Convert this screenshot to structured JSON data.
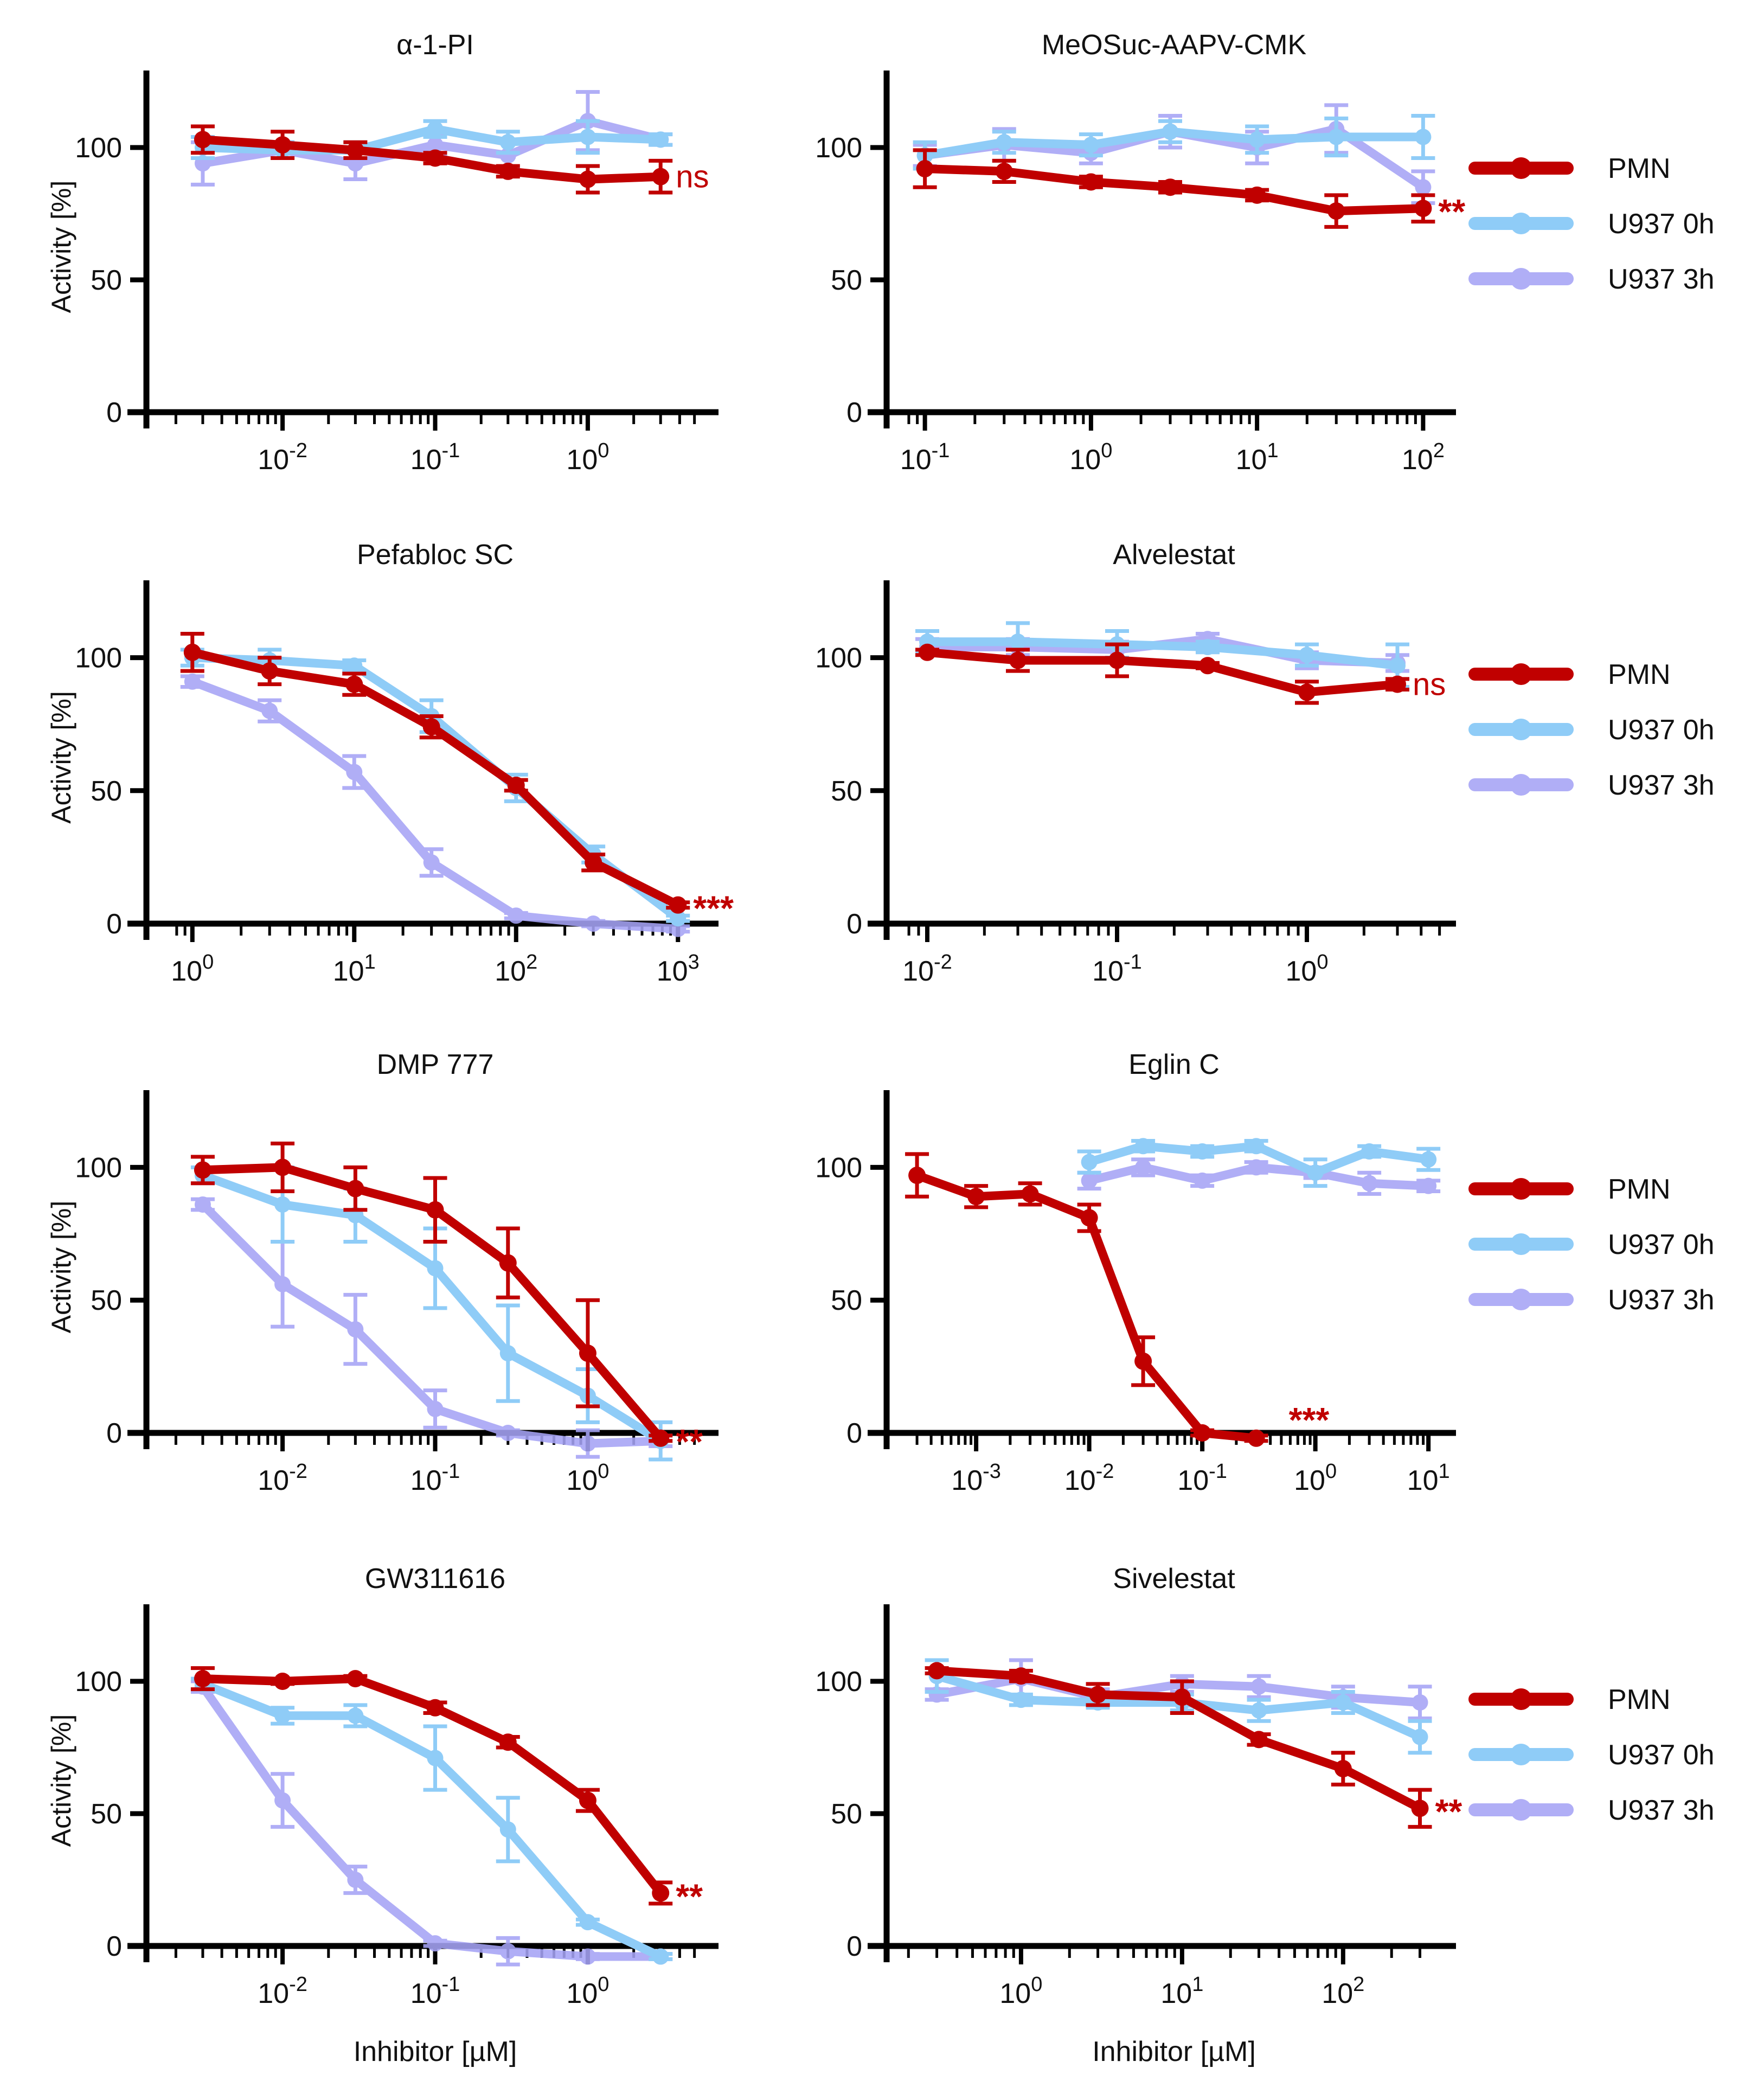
{
  "figure": {
    "x_axis_label": "Inhibitor [µM]",
    "colors": {
      "PMN": "#c00000",
      "U937 0h": "#8fccf7",
      "U937 3h": "#a6a3f5"
    }
  },
  "legend": {
    "series": [
      "PMN",
      "U937 0h",
      "U937 3h"
    ]
  },
  "chart_data": [
    {
      "type": "line",
      "title": "α-1-PI",
      "ylabel": "Activity [%]",
      "xlabel": "",
      "xscale": "log",
      "xlim_log": [
        -2.75,
        0.75
      ],
      "x_tick_exponents": [
        -2,
        -1,
        0
      ],
      "ylim": [
        0,
        125
      ],
      "y_ticks": [
        0,
        50,
        100
      ],
      "significance": "ns",
      "series": [
        {
          "name": "PMN",
          "x": [
            0.003,
            0.01,
            0.03,
            0.1,
            0.3,
            1,
            3
          ],
          "y": [
            103,
            101,
            99,
            96,
            91,
            88,
            89
          ],
          "err": [
            5,
            5,
            3,
            2,
            2,
            5,
            6
          ]
        },
        {
          "name": "U937 0h",
          "x": [
            0.003,
            0.01,
            0.03,
            0.1,
            0.3,
            1,
            3
          ],
          "y": [
            100,
            99,
            99,
            107,
            102,
            104,
            103
          ],
          "err": [
            4,
            3,
            3,
            3,
            4,
            6,
            2
          ]
        },
        {
          "name": "U937 3h",
          "x": [
            0.003,
            0.01,
            0.03,
            0.1,
            0.3,
            1,
            3
          ],
          "y": [
            94,
            99,
            94,
            101,
            97,
            110,
            103
          ],
          "err": [
            8,
            3,
            6,
            4,
            5,
            11,
            2
          ]
        }
      ]
    },
    {
      "type": "line",
      "title": "MeOSuc-AAPV-CMK",
      "ylabel": "",
      "xlabel": "",
      "xscale": "log",
      "xlim_log": [
        -1.1,
        2.1
      ],
      "x_tick_exponents": [
        -1,
        0,
        1,
        2
      ],
      "ylim": [
        0,
        125
      ],
      "y_ticks": [
        0,
        50,
        100
      ],
      "significance": "**",
      "legend": true,
      "series": [
        {
          "name": "PMN",
          "x": [
            0.1,
            0.3,
            1,
            3,
            10,
            30,
            100
          ],
          "y": [
            92,
            91,
            87,
            85,
            82,
            76,
            77
          ],
          "err": [
            7,
            4,
            2,
            2,
            2,
            6,
            5
          ]
        },
        {
          "name": "U937 0h",
          "x": [
            0.1,
            0.3,
            1,
            3,
            10,
            30,
            100
          ],
          "y": [
            97,
            102,
            101,
            106,
            103,
            104,
            104
          ],
          "err": [
            5,
            4,
            4,
            4,
            5,
            7,
            8
          ]
        },
        {
          "name": "U937 3h",
          "x": [
            0.1,
            0.3,
            1,
            3,
            10,
            30,
            100
          ],
          "y": [
            97,
            101,
            98,
            106,
            100,
            107,
            85
          ],
          "err": [
            4,
            6,
            4,
            6,
            6,
            9,
            6
          ]
        }
      ]
    },
    {
      "type": "line",
      "title": "Pefabloc SC",
      "ylabel": "Activity [%]",
      "xlabel": "",
      "xscale": "log",
      "xlim_log": [
        -0.15,
        3.15
      ],
      "x_tick_exponents": [
        0,
        1,
        2,
        3
      ],
      "ylim": [
        0,
        125
      ],
      "y_ticks": [
        0,
        50,
        100
      ],
      "significance": "***",
      "series": [
        {
          "name": "PMN",
          "x": [
            1,
            3,
            10,
            30,
            100,
            300,
            1000
          ],
          "y": [
            102,
            95,
            90,
            74,
            52,
            23,
            7
          ],
          "err": [
            7,
            5,
            4,
            4,
            2,
            3,
            1
          ]
        },
        {
          "name": "U937 0h",
          "x": [
            1,
            3,
            10,
            30,
            100,
            300,
            1000
          ],
          "y": [
            100,
            99,
            97,
            78,
            51,
            26,
            2
          ],
          "err": [
            3,
            4,
            2,
            6,
            5,
            3,
            1
          ]
        },
        {
          "name": "U937 3h",
          "x": [
            1,
            3,
            10,
            30,
            100,
            300,
            1000
          ],
          "y": [
            91,
            80,
            57,
            23,
            3,
            0,
            -2
          ],
          "err": [
            2,
            4,
            6,
            5,
            1,
            1,
            1
          ]
        }
      ]
    },
    {
      "type": "line",
      "title": "Alvelestat",
      "ylabel": "",
      "xlabel": "",
      "xscale": "log",
      "xlim_log": [
        -2.1,
        0.7
      ],
      "x_tick_exponents": [
        -2,
        -1,
        0
      ],
      "ylim": [
        0,
        125
      ],
      "y_ticks": [
        0,
        50,
        100
      ],
      "significance": "ns",
      "legend": true,
      "series": [
        {
          "name": "PMN",
          "x": [
            0.01,
            0.03,
            0.1,
            0.3,
            1,
            3
          ],
          "y": [
            102,
            99,
            99,
            97,
            87,
            90
          ],
          "err": [
            1,
            4,
            6,
            1,
            4,
            2
          ]
        },
        {
          "name": "U937 0h",
          "x": [
            0.01,
            0.03,
            0.1,
            0.3,
            1,
            3
          ],
          "y": [
            106,
            106,
            105,
            104,
            101,
            97
          ],
          "err": [
            4,
            7,
            5,
            2,
            4,
            8
          ]
        },
        {
          "name": "U937 3h",
          "x": [
            0.01,
            0.03,
            0.1,
            0.3,
            1,
            3
          ],
          "y": [
            104,
            104,
            103,
            107,
            99,
            98
          ],
          "err": [
            3,
            3,
            3,
            2,
            3,
            3
          ]
        }
      ]
    },
    {
      "type": "line",
      "title": "DMP 777",
      "ylabel": "Activity [%]",
      "xlabel": "",
      "xscale": "log",
      "xlim_log": [
        -2.75,
        0.75
      ],
      "x_tick_exponents": [
        -2,
        -1,
        0
      ],
      "ylim": [
        0,
        125
      ],
      "y_ticks": [
        0,
        50,
        100
      ],
      "significance": "**",
      "series": [
        {
          "name": "PMN",
          "x": [
            0.003,
            0.01,
            0.03,
            0.1,
            0.3,
            1,
            3
          ],
          "y": [
            99,
            100,
            92,
            84,
            64,
            30,
            -2
          ],
          "err": [
            5,
            9,
            8,
            12,
            13,
            20,
            1
          ]
        },
        {
          "name": "U937 0h",
          "x": [
            0.003,
            0.01,
            0.03,
            0.1,
            0.3,
            1,
            3
          ],
          "y": [
            97,
            86,
            82,
            62,
            30,
            14,
            -3
          ],
          "err": [
            3,
            14,
            10,
            15,
            18,
            10,
            7
          ]
        },
        {
          "name": "U937 3h",
          "x": [
            0.003,
            0.01,
            0.03,
            0.1,
            0.3,
            1,
            3
          ],
          "y": [
            86,
            56,
            39,
            9,
            0,
            -4,
            -3
          ],
          "err": [
            2,
            16,
            13,
            7,
            1,
            5,
            2
          ]
        }
      ]
    },
    {
      "type": "line",
      "title": "Eglin C",
      "ylabel": "",
      "xlabel": "",
      "xscale": "log",
      "xlim_log": [
        -3.6,
        1.1
      ],
      "x_tick_exponents": [
        -3,
        -2,
        -1,
        0,
        1
      ],
      "ylim": [
        0,
        125
      ],
      "y_ticks": [
        0,
        50,
        100
      ],
      "significance": "***",
      "legend": true,
      "series": [
        {
          "name": "PMN",
          "x": [
            0.0003,
            0.001,
            0.003,
            0.01,
            0.03,
            0.1,
            0.3
          ],
          "y": [
            97,
            89,
            90,
            81,
            27,
            0,
            -2
          ],
          "err": [
            8,
            4,
            4,
            5,
            9,
            1,
            1
          ]
        },
        {
          "name": "U937 0h",
          "x": [
            0.01,
            0.03,
            0.1,
            0.3,
            1,
            3,
            10
          ],
          "y": [
            102,
            108,
            106,
            108,
            98,
            106,
            103
          ],
          "err": [
            4,
            2,
            2,
            2,
            5,
            2,
            4
          ]
        },
        {
          "name": "U937 3h",
          "x": [
            0.01,
            0.03,
            0.1,
            0.3,
            1,
            3,
            10
          ],
          "y": [
            95,
            100,
            95,
            100,
            98,
            94,
            93
          ],
          "err": [
            3,
            3,
            2,
            2,
            2,
            4,
            2
          ]
        }
      ]
    },
    {
      "type": "line",
      "title": "GW311616",
      "ylabel": "Activity [%]",
      "xlabel": "Inhibitor [µM]",
      "xscale": "log",
      "xlim_log": [
        -2.75,
        0.75
      ],
      "x_tick_exponents": [
        -2,
        -1,
        0
      ],
      "ylim": [
        0,
        125
      ],
      "y_ticks": [
        0,
        50,
        100
      ],
      "significance": "**",
      "series": [
        {
          "name": "PMN",
          "x": [
            0.003,
            0.01,
            0.03,
            0.1,
            0.3,
            1,
            3
          ],
          "y": [
            101,
            100,
            101,
            90,
            77,
            55,
            20
          ],
          "err": [
            4,
            1,
            1,
            2,
            2,
            4,
            4
          ]
        },
        {
          "name": "U937 0h",
          "x": [
            0.003,
            0.01,
            0.03,
            0.1,
            0.3,
            1,
            3
          ],
          "y": [
            99,
            87,
            87,
            71,
            44,
            9,
            -4
          ],
          "err": [
            2,
            3,
            4,
            12,
            12,
            1,
            1
          ]
        },
        {
          "name": "U937 3h",
          "x": [
            0.003,
            0.01,
            0.03,
            0.1,
            0.3,
            1,
            3
          ],
          "y": [
            98,
            55,
            25,
            1,
            -2,
            -4,
            -4
          ],
          "err": [
            2,
            10,
            5,
            1,
            5,
            1,
            1
          ]
        }
      ]
    },
    {
      "type": "line",
      "title": "Sivelestat",
      "ylabel": "",
      "xlabel": "Inhibitor [µM]",
      "xscale": "log",
      "xlim_log": [
        -0.7,
        2.6
      ],
      "x_tick_exponents": [
        0,
        1,
        2
      ],
      "ylim": [
        0,
        125
      ],
      "y_ticks": [
        0,
        50,
        100
      ],
      "significance": "**",
      "legend": true,
      "series": [
        {
          "name": "PMN",
          "x": [
            0.3,
            1,
            3,
            10,
            30,
            100,
            300
          ],
          "y": [
            104,
            102,
            95,
            94,
            78,
            67,
            52
          ],
          "err": [
            1,
            2,
            4,
            6,
            2,
            6,
            7
          ]
        },
        {
          "name": "U937 0h",
          "x": [
            0.3,
            1,
            3,
            10,
            30,
            100,
            300
          ],
          "y": [
            102,
            93,
            92,
            92,
            89,
            92,
            79
          ],
          "err": [
            6,
            2,
            2,
            3,
            4,
            4,
            6
          ]
        },
        {
          "name": "U937 3h",
          "x": [
            0.3,
            1,
            3,
            10,
            30,
            100,
            300
          ],
          "y": [
            95,
            101,
            94,
            99,
            98,
            94,
            92
          ],
          "err": [
            2,
            7,
            3,
            3,
            4,
            4,
            6
          ]
        }
      ]
    }
  ]
}
